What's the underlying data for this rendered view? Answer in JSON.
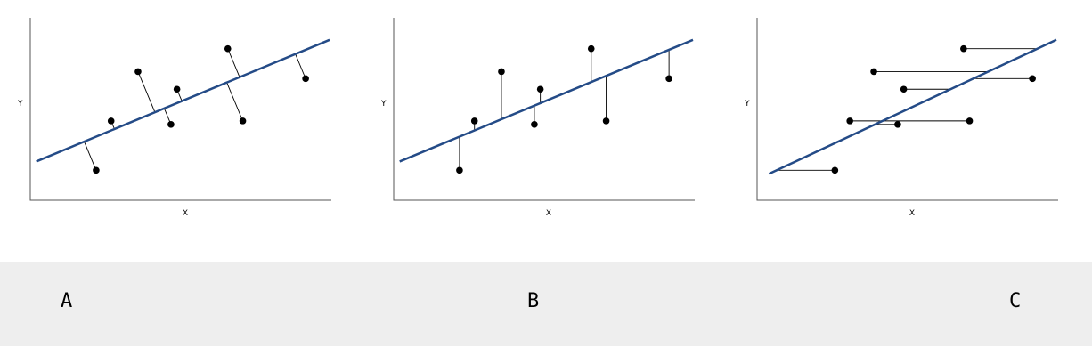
{
  "colors": {
    "regression_line": "#244b87",
    "points": "#000000",
    "label_band": "#eeeeee"
  },
  "labels": {
    "a": "A",
    "b": "B",
    "c": "C"
  },
  "chart_data": [
    {
      "type": "scatter",
      "panel": "A",
      "residual_direction": "perpendicular",
      "xlabel": "X",
      "ylabel": "Y",
      "xlim": [
        0,
        10
      ],
      "ylim": [
        0,
        10
      ],
      "grid": false,
      "points": [
        {
          "x": 2.2,
          "y": 1.6
        },
        {
          "x": 2.7,
          "y": 4.4
        },
        {
          "x": 3.6,
          "y": 7.2
        },
        {
          "x": 4.7,
          "y": 4.2
        },
        {
          "x": 4.9,
          "y": 6.2
        },
        {
          "x": 6.6,
          "y": 8.5
        },
        {
          "x": 7.1,
          "y": 4.4
        },
        {
          "x": 9.2,
          "y": 6.8
        }
      ],
      "line": {
        "x": [
          0.2,
          10.0
        ],
        "y": [
          2.1,
          9.0
        ]
      }
    },
    {
      "type": "scatter",
      "panel": "B",
      "residual_direction": "vertical",
      "xlabel": "X",
      "ylabel": "Y",
      "xlim": [
        0,
        10
      ],
      "ylim": [
        0,
        10
      ],
      "grid": false,
      "points": [
        {
          "x": 2.2,
          "y": 1.6
        },
        {
          "x": 2.7,
          "y": 4.4
        },
        {
          "x": 3.6,
          "y": 7.2
        },
        {
          "x": 4.7,
          "y": 4.2
        },
        {
          "x": 4.9,
          "y": 6.2
        },
        {
          "x": 6.6,
          "y": 8.5
        },
        {
          "x": 7.1,
          "y": 4.4
        },
        {
          "x": 9.2,
          "y": 6.8
        }
      ],
      "line": {
        "x": [
          0.2,
          10.0
        ],
        "y": [
          2.1,
          9.0
        ]
      }
    },
    {
      "type": "scatter",
      "panel": "C",
      "residual_direction": "horizontal",
      "xlabel": "X",
      "ylabel": "Y",
      "xlim": [
        0,
        10
      ],
      "ylim": [
        0,
        10
      ],
      "grid": false,
      "points": [
        {
          "x": 2.6,
          "y": 1.6
        },
        {
          "x": 3.1,
          "y": 4.4
        },
        {
          "x": 3.9,
          "y": 7.2
        },
        {
          "x": 4.7,
          "y": 4.2
        },
        {
          "x": 4.9,
          "y": 6.2
        },
        {
          "x": 6.9,
          "y": 8.5
        },
        {
          "x": 7.1,
          "y": 4.4
        },
        {
          "x": 9.2,
          "y": 6.8
        }
      ],
      "line": {
        "x": [
          0.4,
          10.0
        ],
        "y": [
          1.4,
          9.0
        ]
      }
    }
  ]
}
